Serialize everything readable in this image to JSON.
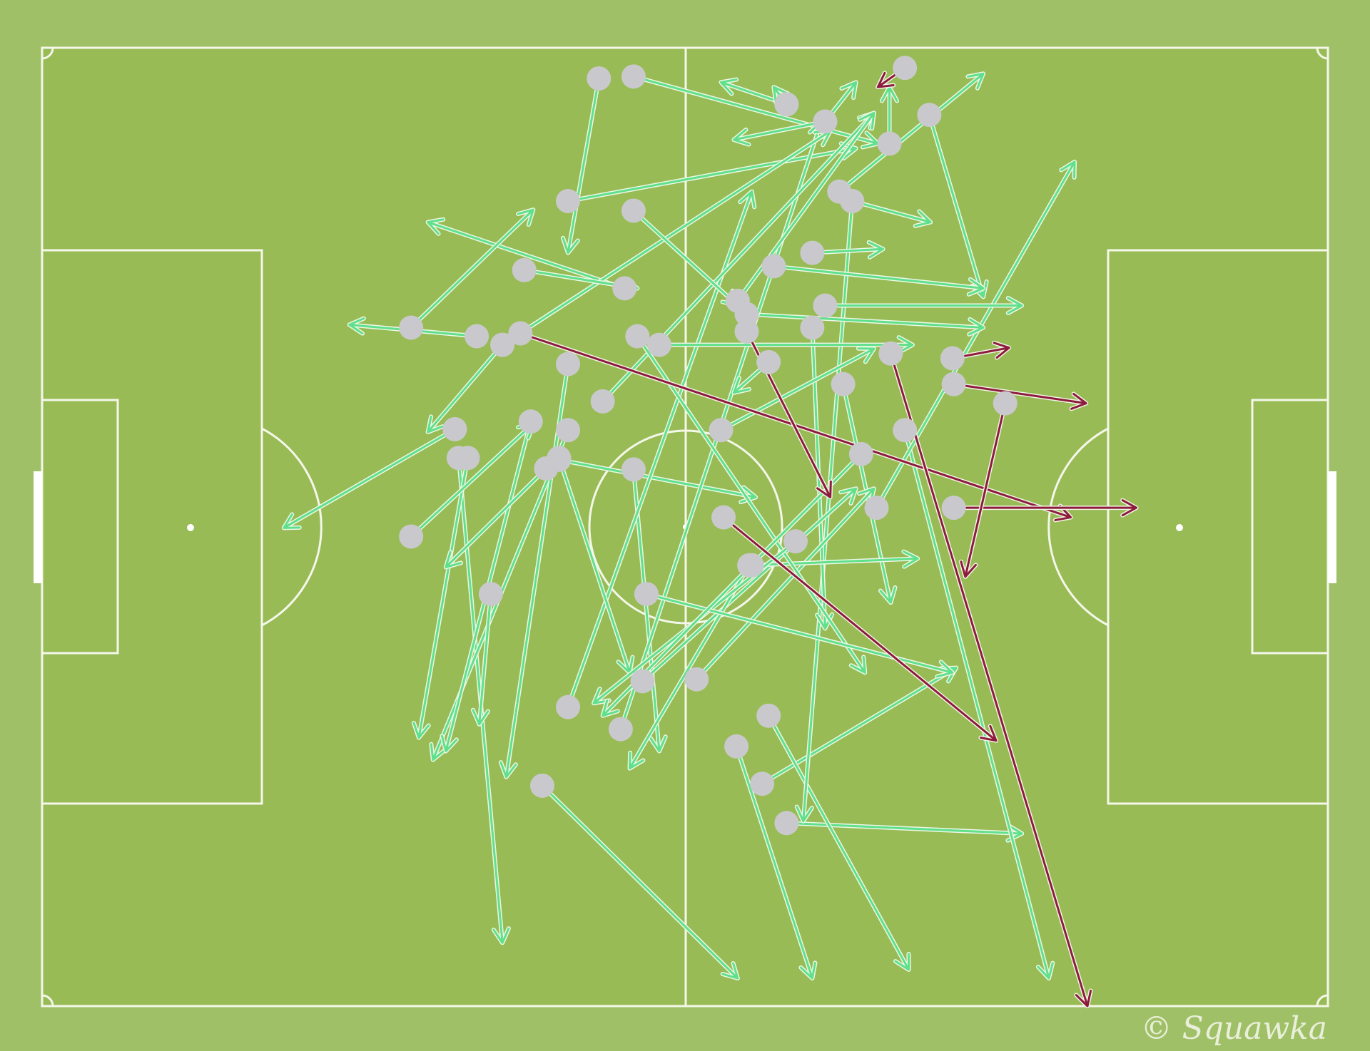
{
  "watermark": "© Squawka",
  "colors": {
    "background": "#a0c068",
    "pitch": "#98bb55",
    "lines": "#f4f7ea",
    "successful_pass": "#5fe08a",
    "unsuccessful_pass": "#8e1b3c",
    "pass_origin": "#c9c9cd"
  },
  "chart_data": {
    "type": "pass-map",
    "x_range": [
      0,
      100
    ],
    "y_range": [
      0,
      100
    ],
    "successful_passes": [
      [
        46.0,
        3.0,
        65.0,
        10.0
      ],
      [
        43.3,
        3.2,
        40.9,
        21.4
      ],
      [
        40.9,
        16.0,
        63.3,
        10.5
      ],
      [
        57.9,
        5.9,
        52.8,
        3.6
      ],
      [
        57.9,
        5.9,
        56.9,
        4.1
      ],
      [
        62.0,
        15.0,
        73.2,
        2.7
      ],
      [
        69.0,
        7.0,
        73.2,
        26.0
      ],
      [
        65.9,
        10.0,
        65.9,
        4.1
      ],
      [
        60.9,
        7.7,
        63.3,
        3.6
      ],
      [
        60.9,
        7.7,
        53.8,
        9.6
      ],
      [
        63.0,
        16.0,
        69.1,
        18.2
      ],
      [
        45.3,
        25.1,
        30.0,
        18.2
      ],
      [
        28.7,
        29.2,
        38.2,
        16.9
      ],
      [
        33.8,
        30.1,
        23.9,
        28.9
      ],
      [
        32.1,
        39.8,
        18.8,
        50.1
      ],
      [
        35.8,
        31.0,
        30.0,
        40.1
      ],
      [
        32.4,
        42.8,
        35.8,
        93.4
      ],
      [
        38.9,
        77.0,
        54.1,
        97.1
      ],
      [
        54.0,
        72.9,
        59.9,
        97.1
      ],
      [
        56.0,
        76.8,
        71.1,
        64.7
      ],
      [
        57.9,
        80.9,
        76.2,
        82.0
      ],
      [
        67.1,
        39.9,
        78.3,
        97.1
      ],
      [
        56.5,
        69.7,
        67.4,
        96.2
      ],
      [
        63.0,
        16.0,
        59.2,
        80.7
      ],
      [
        59.9,
        29.2,
        60.9,
        60.6
      ],
      [
        64.9,
        48.0,
        80.3,
        11.9
      ],
      [
        62.3,
        35.1,
        66.0,
        57.9
      ],
      [
        52.8,
        39.9,
        64.7,
        31.4
      ],
      [
        59.9,
        21.4,
        65.4,
        21.0
      ],
      [
        60.9,
        26.9,
        76.2,
        26.9
      ],
      [
        56.9,
        22.8,
        73.2,
        25.1
      ],
      [
        54.8,
        27.8,
        73.2,
        29.2
      ],
      [
        40.9,
        33.0,
        36.1,
        76.1
      ],
      [
        40.9,
        39.9,
        30.4,
        74.3
      ],
      [
        33.1,
        42.8,
        29.3,
        72.0
      ],
      [
        38.0,
        39.0,
        31.4,
        73.4
      ],
      [
        40.2,
        43.0,
        55.5,
        46.9
      ],
      [
        50.9,
        65.9,
        64.7,
        46.0
      ],
      [
        46.0,
        44.0,
        48.0,
        73.4
      ],
      [
        45.0,
        71.1,
        60.6,
        7.7
      ],
      [
        40.9,
        68.8,
        55.2,
        15.0
      ],
      [
        43.6,
        36.9,
        64.7,
        6.8
      ],
      [
        35.8,
        31.0,
        61.3,
        8.7
      ],
      [
        54.1,
        26.4,
        64.7,
        6.8
      ],
      [
        46.0,
        17.0,
        54.1,
        26.9
      ],
      [
        46.7,
        66.1,
        63.3,
        46.0
      ],
      [
        55.0,
        54.0,
        45.7,
        75.2
      ],
      [
        55.2,
        54.0,
        68.1,
        53.3
      ],
      [
        48.0,
        31.0,
        67.7,
        31.0
      ],
      [
        46.3,
        30.1,
        64.0,
        65.2
      ],
      [
        28.7,
        51.0,
        38.2,
        39.2
      ],
      [
        39.2,
        43.9,
        31.4,
        54.2
      ],
      [
        34.9,
        57.0,
        34.0,
        70.6
      ],
      [
        40.2,
        42.8,
        45.7,
        65.2
      ],
      [
        58.6,
        51.5,
        42.9,
        68.4
      ],
      [
        47.0,
        57.0,
        70.8,
        65.2
      ],
      [
        37.5,
        23.2,
        46.3,
        25.1
      ],
      [
        63.7,
        42.4,
        43.6,
        69.7
      ],
      [
        56.5,
        32.8,
        53.8,
        36.0
      ]
    ],
    "unsuccessful_passes": [
      [
        37.2,
        29.8,
        80.0,
        49.0
      ],
      [
        53.0,
        49.0,
        74.2,
        72.3
      ],
      [
        66.0,
        31.9,
        81.3,
        100
      ],
      [
        70.9,
        35.1,
        81.2,
        37.1
      ],
      [
        70.9,
        48.0,
        85.1,
        48.0
      ],
      [
        74.9,
        37.1,
        71.8,
        55.2
      ],
      [
        70.8,
        32.4,
        75.2,
        31.3
      ],
      [
        67.1,
        2.1,
        65.0,
        4.1
      ],
      [
        54.8,
        29.6,
        61.3,
        46.9
      ]
    ]
  }
}
